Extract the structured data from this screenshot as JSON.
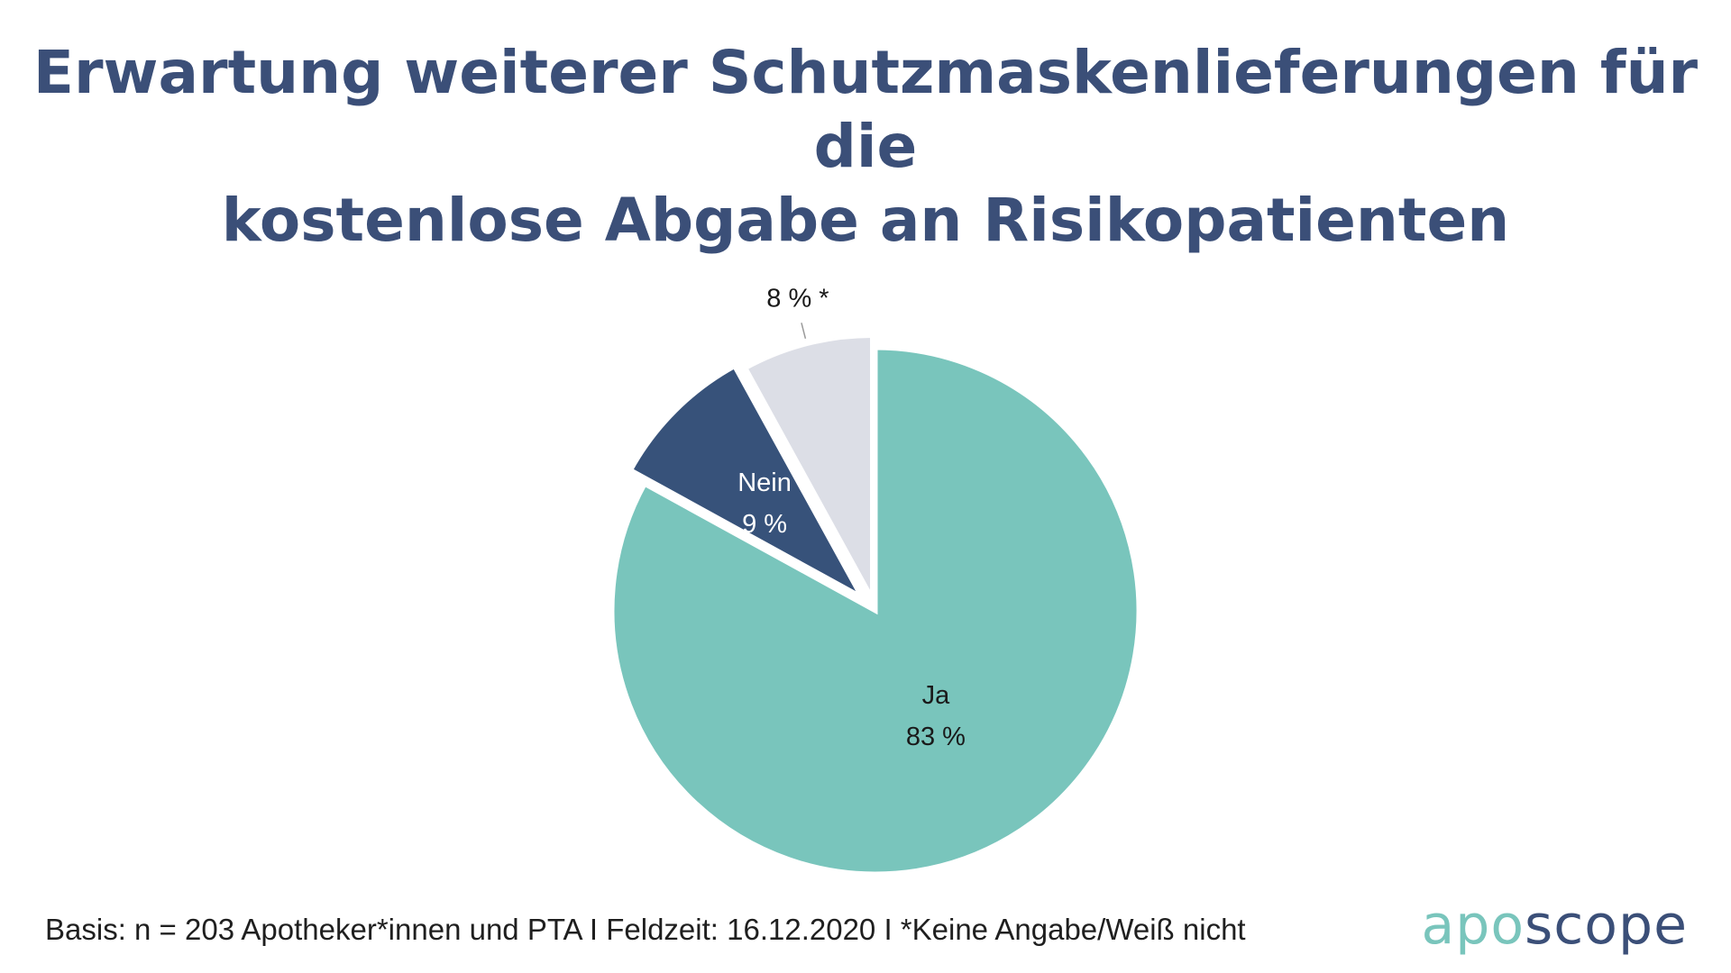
{
  "title_line1": "Erwartung weiterer Schutzmaskenlieferungen für die",
  "title_line2": "kostenlose Abgabe an Risikopatienten",
  "footer_note": "Basis: n = 203 Apotheker*innen und PTA I Feldzeit: 16.12.2020 I *Keine Angabe/Weiß nicht",
  "logo": {
    "part1": "apo",
    "part2": "scope"
  },
  "colors": {
    "title": "#3b4f78",
    "ja": "#79c5bc",
    "nein": "#37527a",
    "keine_angabe": "#dcdee6"
  },
  "chart_data": {
    "type": "pie",
    "title": "Erwartung weiterer Schutzmaskenlieferungen für die kostenlose Abgabe an Risikopatienten",
    "slices": [
      {
        "label": "Ja",
        "value": 83,
        "value_label": "83 %",
        "color": "#79c5bc",
        "text_color": "#1a1a1a"
      },
      {
        "label": "Nein",
        "value": 9,
        "value_label": "9 %",
        "color": "#37527a",
        "text_color": "#ffffff"
      },
      {
        "label": "",
        "value": 8,
        "value_label": "8 % *",
        "color": "#dcdee6",
        "text_color": "#1a1a1a"
      }
    ],
    "start": "12 o'clock",
    "direction": "clockwise"
  }
}
